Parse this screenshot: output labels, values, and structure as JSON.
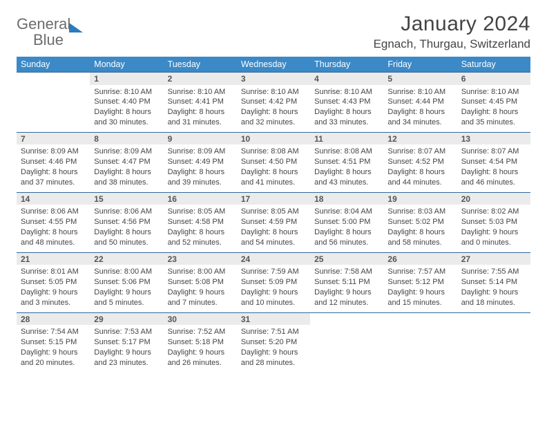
{
  "logo": {
    "part1": "General",
    "part2": "Blue"
  },
  "title": "January 2024",
  "location": "Egnach, Thurgau, Switzerland",
  "weekdays": [
    "Sunday",
    "Monday",
    "Tuesday",
    "Wednesday",
    "Thursday",
    "Friday",
    "Saturday"
  ],
  "colors": {
    "header_bg": "#3b89c7",
    "header_text": "#ffffff",
    "daynum_bg": "#ebebeb",
    "border": "#33689a",
    "text": "#444444",
    "logo_grey": "#6c6c6c",
    "logo_blue": "#2a7bbf"
  },
  "weeks": [
    [
      null,
      {
        "n": "1",
        "sunrise": "8:10 AM",
        "sunset": "4:40 PM",
        "day_h": "8",
        "day_m": "30"
      },
      {
        "n": "2",
        "sunrise": "8:10 AM",
        "sunset": "4:41 PM",
        "day_h": "8",
        "day_m": "31"
      },
      {
        "n": "3",
        "sunrise": "8:10 AM",
        "sunset": "4:42 PM",
        "day_h": "8",
        "day_m": "32"
      },
      {
        "n": "4",
        "sunrise": "8:10 AM",
        "sunset": "4:43 PM",
        "day_h": "8",
        "day_m": "33"
      },
      {
        "n": "5",
        "sunrise": "8:10 AM",
        "sunset": "4:44 PM",
        "day_h": "8",
        "day_m": "34"
      },
      {
        "n": "6",
        "sunrise": "8:10 AM",
        "sunset": "4:45 PM",
        "day_h": "8",
        "day_m": "35"
      }
    ],
    [
      {
        "n": "7",
        "sunrise": "8:09 AM",
        "sunset": "4:46 PM",
        "day_h": "8",
        "day_m": "37"
      },
      {
        "n": "8",
        "sunrise": "8:09 AM",
        "sunset": "4:47 PM",
        "day_h": "8",
        "day_m": "38"
      },
      {
        "n": "9",
        "sunrise": "8:09 AM",
        "sunset": "4:49 PM",
        "day_h": "8",
        "day_m": "39"
      },
      {
        "n": "10",
        "sunrise": "8:08 AM",
        "sunset": "4:50 PM",
        "day_h": "8",
        "day_m": "41"
      },
      {
        "n": "11",
        "sunrise": "8:08 AM",
        "sunset": "4:51 PM",
        "day_h": "8",
        "day_m": "43"
      },
      {
        "n": "12",
        "sunrise": "8:07 AM",
        "sunset": "4:52 PM",
        "day_h": "8",
        "day_m": "44"
      },
      {
        "n": "13",
        "sunrise": "8:07 AM",
        "sunset": "4:54 PM",
        "day_h": "8",
        "day_m": "46"
      }
    ],
    [
      {
        "n": "14",
        "sunrise": "8:06 AM",
        "sunset": "4:55 PM",
        "day_h": "8",
        "day_m": "48"
      },
      {
        "n": "15",
        "sunrise": "8:06 AM",
        "sunset": "4:56 PM",
        "day_h": "8",
        "day_m": "50"
      },
      {
        "n": "16",
        "sunrise": "8:05 AM",
        "sunset": "4:58 PM",
        "day_h": "8",
        "day_m": "52"
      },
      {
        "n": "17",
        "sunrise": "8:05 AM",
        "sunset": "4:59 PM",
        "day_h": "8",
        "day_m": "54"
      },
      {
        "n": "18",
        "sunrise": "8:04 AM",
        "sunset": "5:00 PM",
        "day_h": "8",
        "day_m": "56"
      },
      {
        "n": "19",
        "sunrise": "8:03 AM",
        "sunset": "5:02 PM",
        "day_h": "8",
        "day_m": "58"
      },
      {
        "n": "20",
        "sunrise": "8:02 AM",
        "sunset": "5:03 PM",
        "day_h": "9",
        "day_m": "0"
      }
    ],
    [
      {
        "n": "21",
        "sunrise": "8:01 AM",
        "sunset": "5:05 PM",
        "day_h": "9",
        "day_m": "3"
      },
      {
        "n": "22",
        "sunrise": "8:00 AM",
        "sunset": "5:06 PM",
        "day_h": "9",
        "day_m": "5"
      },
      {
        "n": "23",
        "sunrise": "8:00 AM",
        "sunset": "5:08 PM",
        "day_h": "9",
        "day_m": "7"
      },
      {
        "n": "24",
        "sunrise": "7:59 AM",
        "sunset": "5:09 PM",
        "day_h": "9",
        "day_m": "10"
      },
      {
        "n": "25",
        "sunrise": "7:58 AM",
        "sunset": "5:11 PM",
        "day_h": "9",
        "day_m": "12"
      },
      {
        "n": "26",
        "sunrise": "7:57 AM",
        "sunset": "5:12 PM",
        "day_h": "9",
        "day_m": "15"
      },
      {
        "n": "27",
        "sunrise": "7:55 AM",
        "sunset": "5:14 PM",
        "day_h": "9",
        "day_m": "18"
      }
    ],
    [
      {
        "n": "28",
        "sunrise": "7:54 AM",
        "sunset": "5:15 PM",
        "day_h": "9",
        "day_m": "20"
      },
      {
        "n": "29",
        "sunrise": "7:53 AM",
        "sunset": "5:17 PM",
        "day_h": "9",
        "day_m": "23"
      },
      {
        "n": "30",
        "sunrise": "7:52 AM",
        "sunset": "5:18 PM",
        "day_h": "9",
        "day_m": "26"
      },
      {
        "n": "31",
        "sunrise": "7:51 AM",
        "sunset": "5:20 PM",
        "day_h": "9",
        "day_m": "28"
      },
      null,
      null,
      null
    ]
  ],
  "labels": {
    "sunrise": "Sunrise:",
    "sunset": "Sunset:",
    "daylight_prefix": "Daylight:",
    "hours": "hours",
    "and": "and",
    "minutes": "minutes."
  }
}
